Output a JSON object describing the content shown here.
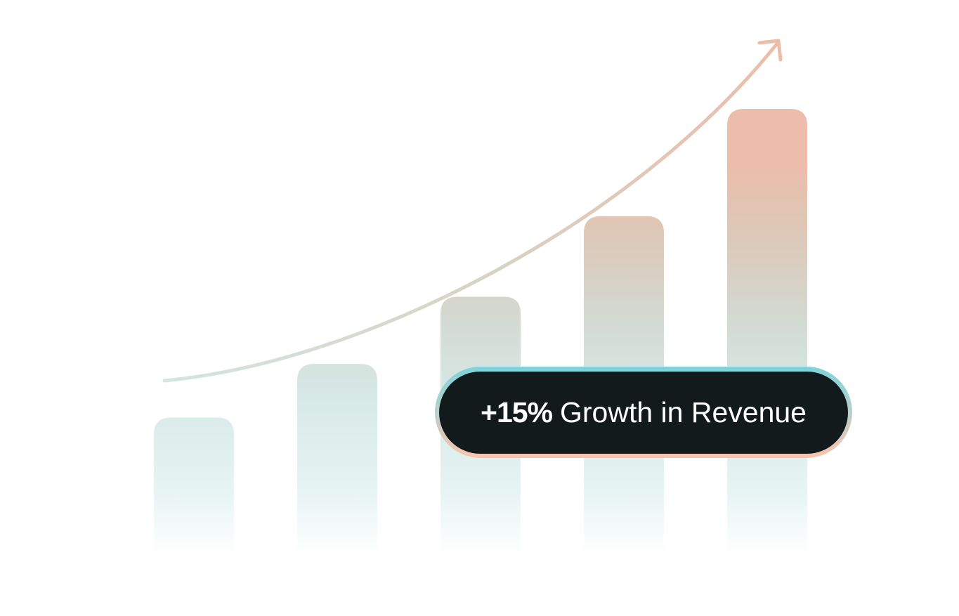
{
  "badge": {
    "highlight": "+15%",
    "text": "Growth in Revenue"
  },
  "chart_data": {
    "type": "bar",
    "categories": [
      "",
      "",
      "",
      "",
      ""
    ],
    "values": [
      31,
      43,
      58,
      76,
      100
    ],
    "trend_arrow": "upward curved arrow",
    "grid": false,
    "axes": false,
    "colors": {
      "low": "#d5e8e5",
      "mid": "#d6d3c6",
      "high": "#ebbdaa",
      "badge_bg": "#131a1b",
      "badge_border_top": "#7fd3dc",
      "badge_border_bottom": "#f9c4ad"
    }
  }
}
